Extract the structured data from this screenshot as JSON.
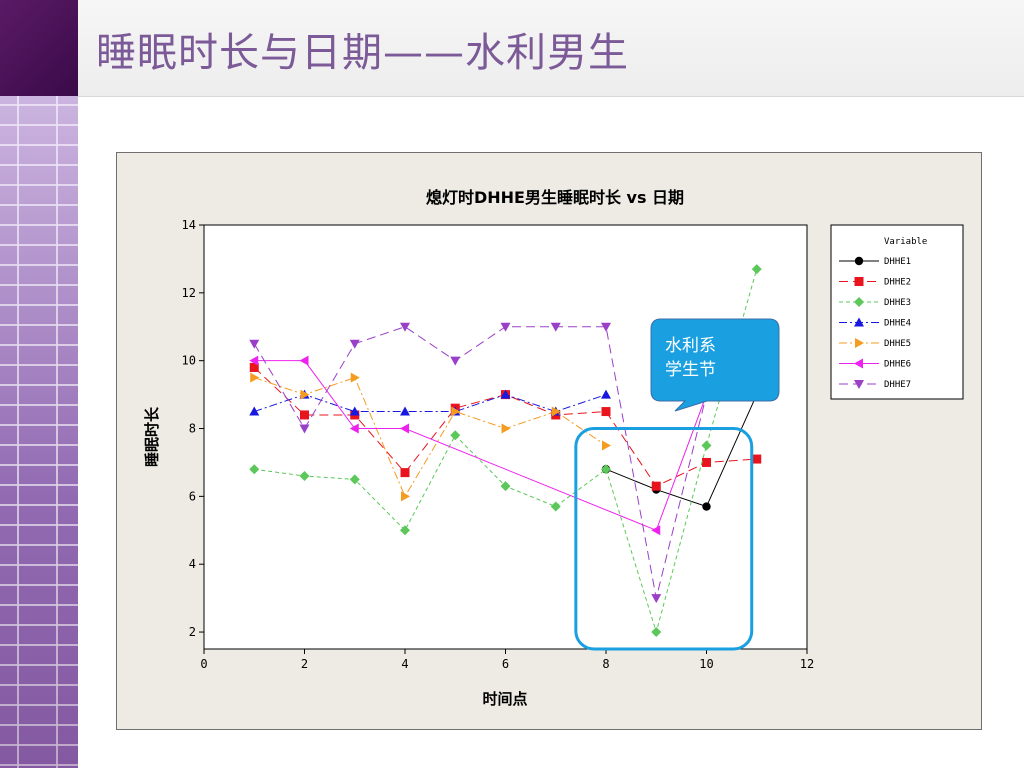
{
  "page": {
    "title": "睡眠时长与日期——水利男生"
  },
  "annotation": {
    "callout_lines": [
      "水利系",
      "学生节"
    ],
    "callout_color": "#1aa0e0",
    "highlight_color": "#1aa0e0",
    "highlight_x_range": [
      7.4,
      10.9
    ],
    "highlight_y_range": [
      1.5,
      8.0
    ]
  },
  "chart_data": {
    "type": "line",
    "title": "熄灯时DHHE男生睡眠时长 vs 日期",
    "xlabel": "时间点",
    "ylabel": "睡眠时长",
    "xlim": [
      0,
      12
    ],
    "ylim": [
      1.5,
      14
    ],
    "xticks": [
      0,
      2,
      4,
      6,
      8,
      10,
      12
    ],
    "yticks": [
      2,
      4,
      6,
      8,
      10,
      12,
      14
    ],
    "grid": false,
    "legend": {
      "title": "Variable",
      "placement": "right"
    },
    "series": [
      {
        "name": "DHHE1",
        "color": "#000000",
        "marker": "circle",
        "dash": "none",
        "points": [
          [
            8,
            6.8
          ],
          [
            9,
            6.2
          ],
          [
            10,
            5.7
          ],
          [
            11,
            9.0
          ]
        ]
      },
      {
        "name": "DHHE2",
        "color": "#e8141e",
        "marker": "square",
        "dash": "long",
        "points": [
          [
            1,
            9.8
          ],
          [
            2,
            8.4
          ],
          [
            3,
            8.4
          ],
          [
            4,
            6.7
          ],
          [
            5,
            8.6
          ],
          [
            6,
            9.0
          ],
          [
            7,
            8.4
          ],
          [
            8,
            8.5
          ],
          [
            9,
            6.3
          ],
          [
            10,
            7.0
          ],
          [
            11,
            7.1
          ]
        ]
      },
      {
        "name": "DHHE3",
        "color": "#5cc85a",
        "marker": "diamond",
        "dash": "short",
        "points": [
          [
            1,
            6.8
          ],
          [
            2,
            6.6
          ],
          [
            3,
            6.5
          ],
          [
            4,
            5.0
          ],
          [
            5,
            7.8
          ],
          [
            6,
            6.3
          ],
          [
            7,
            5.7
          ],
          [
            8,
            6.8
          ],
          [
            9,
            2.0
          ],
          [
            10,
            7.5
          ],
          [
            11,
            12.7
          ]
        ]
      },
      {
        "name": "DHHE4",
        "color": "#1818e0",
        "marker": "triangle-up",
        "dash": "dashdot",
        "points": [
          [
            1,
            8.5
          ],
          [
            2,
            9.0
          ],
          [
            3,
            8.5
          ],
          [
            4,
            8.5
          ],
          [
            5,
            8.5
          ],
          [
            6,
            9.0
          ],
          [
            7,
            8.5
          ],
          [
            8,
            9.0
          ]
        ]
      },
      {
        "name": "DHHE5",
        "color": "#f49b20",
        "marker": "triangle-right",
        "dash": "dashdot",
        "points": [
          [
            1,
            9.5
          ],
          [
            2,
            9.0
          ],
          [
            3,
            9.5
          ],
          [
            4,
            6.0
          ],
          [
            5,
            8.5
          ],
          [
            6,
            8.0
          ],
          [
            7,
            8.5
          ],
          [
            8,
            7.5
          ]
        ]
      },
      {
        "name": "DHHE6",
        "color": "#ee22ee",
        "marker": "triangle-left",
        "dash": "none",
        "points": [
          [
            1,
            10.0
          ],
          [
            2,
            10.0
          ],
          [
            3,
            8.0
          ],
          [
            4,
            8.0
          ],
          [
            9,
            5.0
          ],
          [
            10,
            9.0
          ]
        ]
      },
      {
        "name": "DHHE7",
        "color": "#9a40c8",
        "marker": "triangle-down",
        "dash": "long",
        "points": [
          [
            1,
            10.5
          ],
          [
            2,
            8.0
          ],
          [
            3,
            10.5
          ],
          [
            4,
            11.0
          ],
          [
            5,
            10.0
          ],
          [
            6,
            11.0
          ],
          [
            7,
            11.0
          ],
          [
            8,
            11.0
          ],
          [
            9,
            3.0
          ],
          [
            10,
            9.0
          ]
        ]
      }
    ]
  }
}
